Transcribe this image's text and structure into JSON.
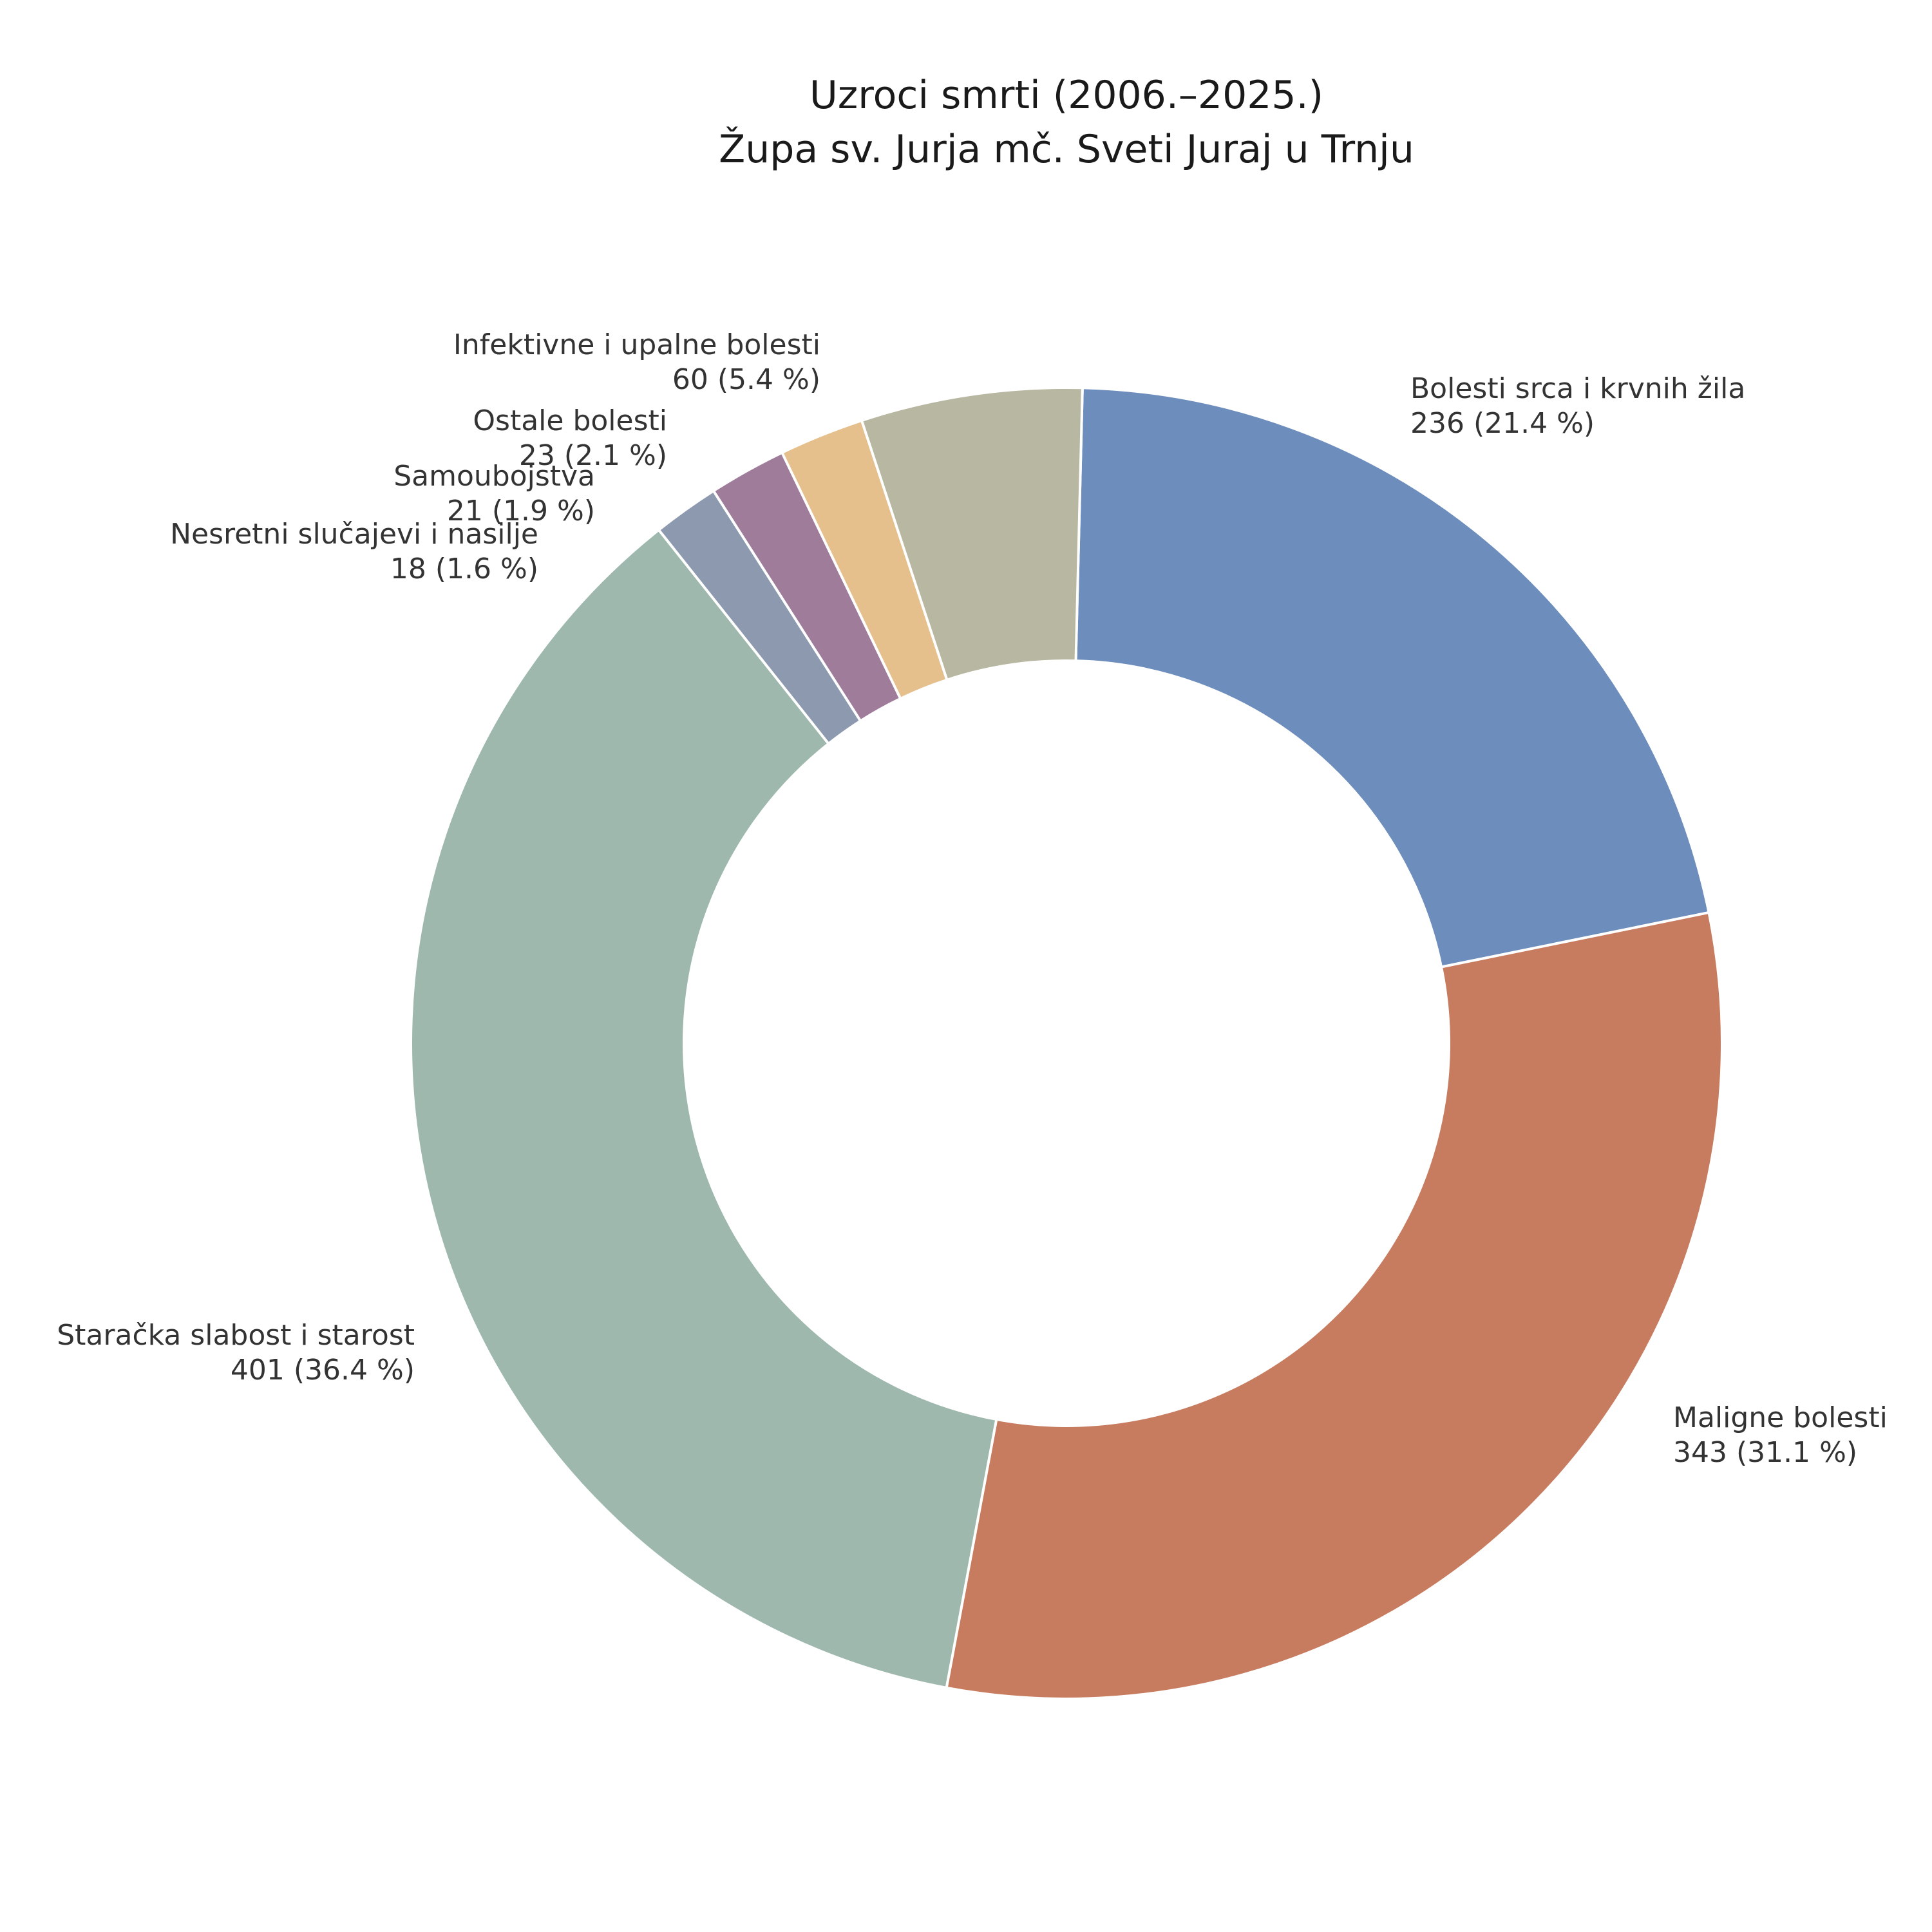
{
  "chart_data": {
    "type": "pie",
    "variant": "donut",
    "title": "Uzroci smrti (2006.–2025.)",
    "subtitle": "Župa sv. Jurja mč. Sveti Juraj u Trnju",
    "slices": [
      {
        "name": "Bolesti srca i krvnih žila",
        "value": 236,
        "percent_label": "236 (21.4 %)",
        "color": "#6d8dbd"
      },
      {
        "name": "Maligne bolesti",
        "value": 343,
        "percent_label": "343 (31.1 %)",
        "color": "#c77b5f"
      },
      {
        "name": "Staračka slabost i starost",
        "value": 401,
        "percent_label": "401 (36.4 %)",
        "color": "#9fb8ad"
      },
      {
        "name": "Nesretni slučajevi i nasilje",
        "value": 18,
        "percent_label": "18 (1.6 %)",
        "color": "#8d99ae"
      },
      {
        "name": "Samoubojstva",
        "value": 21,
        "percent_label": "21 (1.9 %)",
        "color": "#9f7c9a"
      },
      {
        "name": "Ostale bolesti",
        "value": 23,
        "percent_label": "23 (2.1 %)",
        "color": "#e5bf8c"
      },
      {
        "name": "Infektivne i upalne bolesti",
        "value": 60,
        "percent_label": "60 (5.4 %)",
        "color": "#b8b7a2"
      }
    ]
  }
}
